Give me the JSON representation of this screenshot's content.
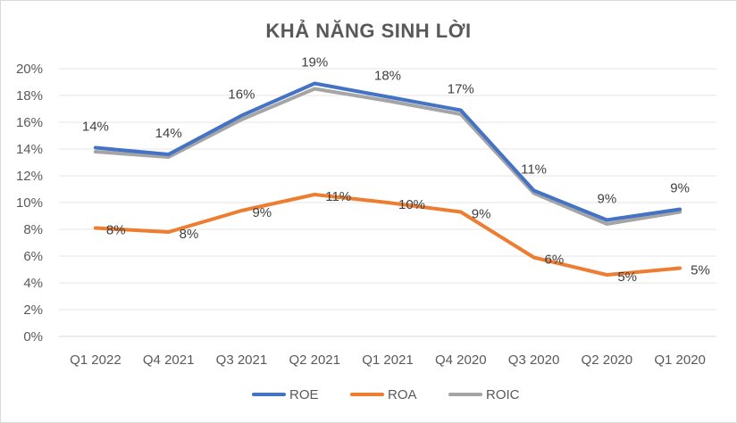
{
  "chart_data": {
    "type": "line",
    "title": "KHẢ NĂNG SINH LỜI",
    "xlabel": "",
    "ylabel": "",
    "categories": [
      "Q1 2022",
      "Q4 2021",
      "Q3 2021",
      "Q2 2021",
      "Q1 2021",
      "Q4 2020",
      "Q3 2020",
      "Q2 2020",
      "Q1 2020"
    ],
    "ylim": [
      0,
      20
    ],
    "yticks": [
      "0%",
      "2%",
      "4%",
      "6%",
      "8%",
      "10%",
      "12%",
      "14%",
      "16%",
      "18%",
      "20%"
    ],
    "grid": true,
    "legend": "bottom",
    "series": [
      {
        "name": "ROE",
        "color": "#4472c4",
        "values": [
          14.1,
          13.6,
          16.5,
          18.9,
          17.9,
          16.9,
          10.9,
          8.7,
          9.5
        ],
        "labels": [
          "14%",
          "14%",
          "16%",
          "19%",
          "18%",
          "17%",
          "11%",
          "9%",
          "9%"
        ]
      },
      {
        "name": "ROA",
        "color": "#ed7d31",
        "values": [
          8.1,
          7.8,
          9.4,
          10.6,
          10.0,
          9.3,
          5.9,
          4.6,
          5.1
        ],
        "labels": [
          "8%",
          "8%",
          "9%",
          "11%",
          "10%",
          "9%",
          "6%",
          "5%",
          "5%"
        ]
      },
      {
        "name": "ROIC",
        "color": "#a5a5a5",
        "values": [
          13.8,
          13.4,
          16.2,
          18.5,
          17.6,
          16.6,
          10.7,
          8.4,
          9.3
        ],
        "labels": []
      }
    ]
  }
}
